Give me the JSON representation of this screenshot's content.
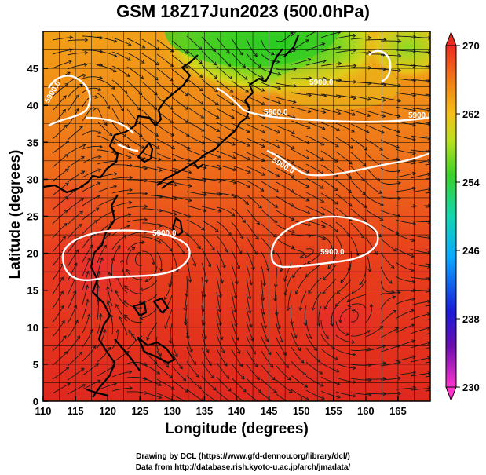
{
  "title": "GSM 18Z17Jun2023 (500.0hPa)",
  "x_axis": {
    "label": "Longitude (degrees)",
    "range": [
      110,
      170
    ],
    "ticks": [
      "110",
      "115",
      "120",
      "125",
      "130",
      "135",
      "140",
      "145",
      "150",
      "155",
      "160",
      "165"
    ]
  },
  "y_axis": {
    "label": "Latitude  (degrees)",
    "range": [
      0,
      50
    ],
    "ticks": [
      "0",
      "5",
      "10",
      "15",
      "20",
      "25",
      "30",
      "35",
      "40",
      "45"
    ]
  },
  "colorbar": {
    "ticks": [
      "230",
      "238",
      "246",
      "254",
      "262",
      "270"
    ],
    "range": [
      230,
      270
    ]
  },
  "contour_labels": [
    "5900.0",
    "5900.0",
    "5900.0",
    "5900.0",
    "5900.0",
    "5900.0",
    "5900.0"
  ],
  "credits": [
    "Drawing by DCL (https://www.gfd-dennou.org/library/dcl/)",
    "Data from http://database.rish.kyoto-u.ac.jp/arch/jmadata/"
  ],
  "colors": {
    "warm": "#e0281e",
    "cold": "#32d026",
    "contour": "#ffffff",
    "coast": "#000000"
  }
}
